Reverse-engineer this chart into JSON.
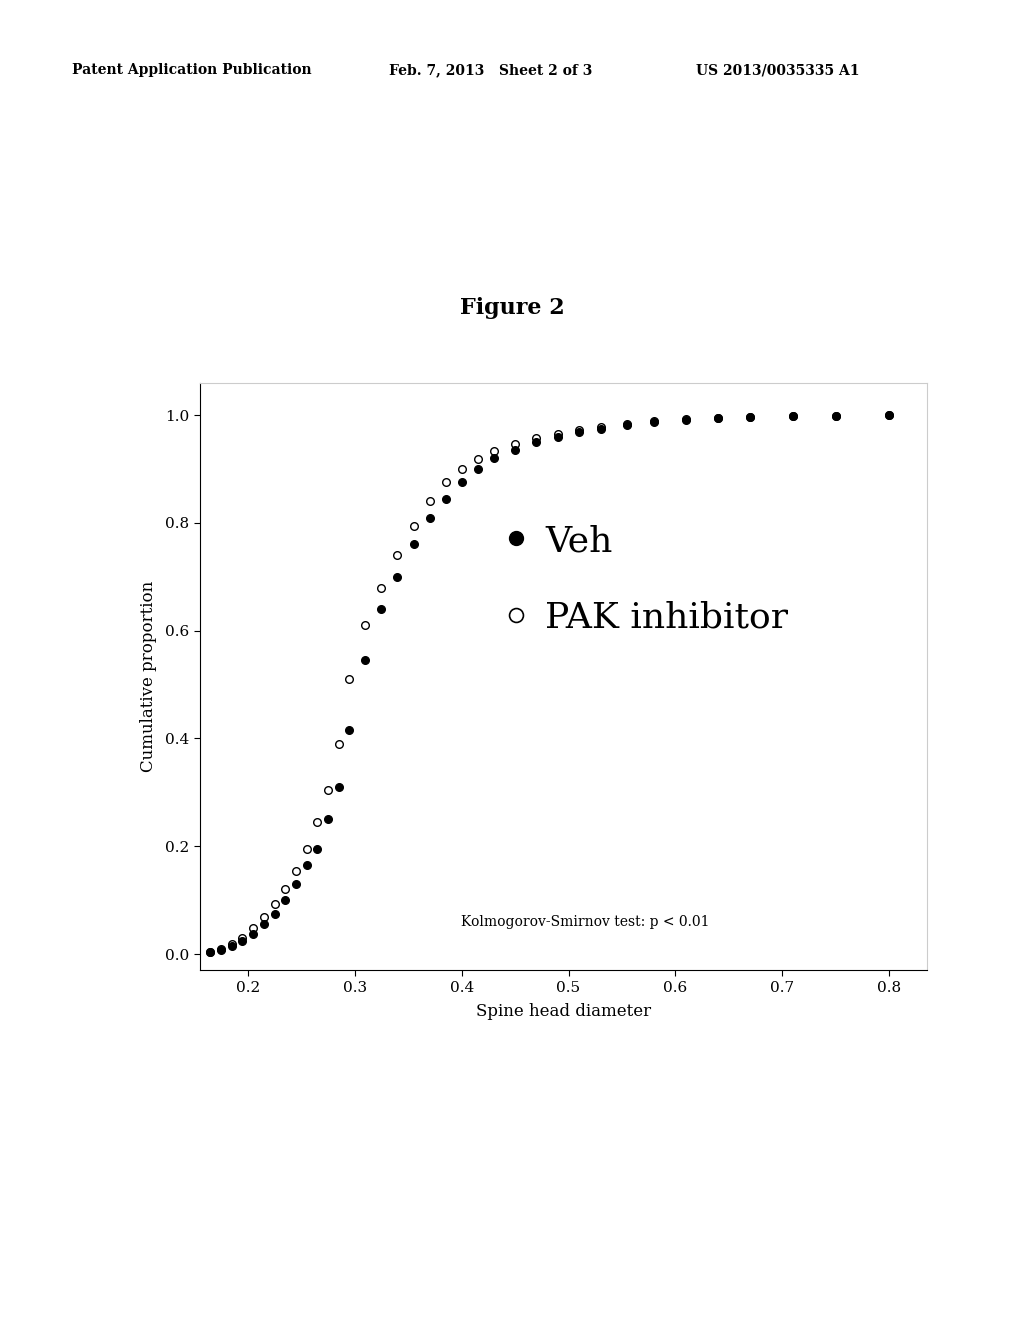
{
  "title": "Figure 2",
  "xlabel": "Spine head diameter",
  "ylabel": "Cumulative proportion",
  "xlim": [
    0.155,
    0.835
  ],
  "ylim": [
    -0.03,
    1.06
  ],
  "xticks": [
    0.2,
    0.3,
    0.4,
    0.5,
    0.6,
    0.7,
    0.8
  ],
  "yticks": [
    0.0,
    0.2,
    0.4,
    0.6,
    0.8,
    1.0
  ],
  "annotation": "Kolmogorov-Smirnov test: p < 0.01",
  "legend_veh_label": "Veh",
  "legend_pak_label": "PAK inhibitor",
  "background_color": "#ffffff",
  "header_line1": "Patent Application Publication",
  "header_line2": "Feb. 7, 2013   Sheet 2 of 3",
  "header_line3": "US 2013/0035335 A1",
  "veh_x": [
    0.165,
    0.175,
    0.185,
    0.195,
    0.205,
    0.215,
    0.225,
    0.235,
    0.245,
    0.255,
    0.265,
    0.275,
    0.285,
    0.295,
    0.31,
    0.325,
    0.34,
    0.355,
    0.37,
    0.385,
    0.4,
    0.415,
    0.43,
    0.45,
    0.47,
    0.49,
    0.51,
    0.53,
    0.555,
    0.58,
    0.61,
    0.64,
    0.67,
    0.71,
    0.75,
    0.8
  ],
  "veh_y": [
    0.003,
    0.008,
    0.015,
    0.025,
    0.038,
    0.055,
    0.075,
    0.1,
    0.13,
    0.165,
    0.195,
    0.25,
    0.31,
    0.415,
    0.545,
    0.64,
    0.7,
    0.76,
    0.81,
    0.845,
    0.875,
    0.9,
    0.92,
    0.935,
    0.95,
    0.96,
    0.968,
    0.975,
    0.982,
    0.987,
    0.991,
    0.994,
    0.996,
    0.998,
    0.999,
    1.0
  ],
  "pak_x": [
    0.165,
    0.175,
    0.185,
    0.195,
    0.205,
    0.215,
    0.225,
    0.235,
    0.245,
    0.255,
    0.265,
    0.275,
    0.285,
    0.295,
    0.31,
    0.325,
    0.34,
    0.355,
    0.37,
    0.385,
    0.4,
    0.415,
    0.43,
    0.45,
    0.47,
    0.49,
    0.51,
    0.53,
    0.555,
    0.58,
    0.61,
    0.64,
    0.67,
    0.71,
    0.75,
    0.8
  ],
  "pak_y": [
    0.003,
    0.01,
    0.018,
    0.03,
    0.048,
    0.068,
    0.092,
    0.12,
    0.155,
    0.195,
    0.245,
    0.305,
    0.39,
    0.51,
    0.61,
    0.68,
    0.74,
    0.795,
    0.84,
    0.875,
    0.9,
    0.918,
    0.933,
    0.946,
    0.957,
    0.965,
    0.972,
    0.978,
    0.984,
    0.989,
    0.992,
    0.995,
    0.997,
    0.998,
    0.999,
    1.0
  ]
}
